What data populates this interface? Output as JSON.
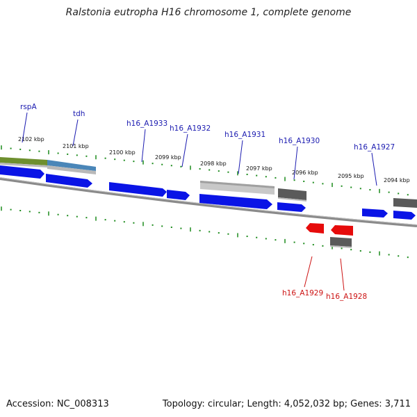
{
  "title": "Ralstonia eutropha H16 chromosome 1, complete genome",
  "footer": {
    "accession": "Accession: NC_008313",
    "summary": "Topology: circular; Length: 4,052,032 bp; Genes: 3,711"
  },
  "colors": {
    "forward_gene": "#0a14e6",
    "reverse_gene": "#e60b0b",
    "label_forward": "#1a1ab0",
    "label_reverse": "#cc1111",
    "tick": "#1a8a1a",
    "backbone": "#8a8a8a",
    "feature_green": "#6e8f2e",
    "feature_blue": "#4a86b8",
    "feature_light_gray": "#c8c8c8",
    "feature_dark_gray": "#5a5a5a"
  },
  "kbp_labels": [
    "2102 kbp",
    "2101 kbp",
    "2100 kbp",
    "2099 kbp",
    "2098 kbp",
    "2097 kbp",
    "2096 kbp",
    "2095 kbp",
    "2094 kbp"
  ],
  "forward_gene_labels": [
    "rspA",
    "tdh",
    "h16_A1933",
    "h16_A1932",
    "h16_A1931",
    "h16_A1930",
    "h16_A1927"
  ],
  "reverse_gene_labels": [
    "h16_A1929",
    "h16_A1928"
  ]
}
